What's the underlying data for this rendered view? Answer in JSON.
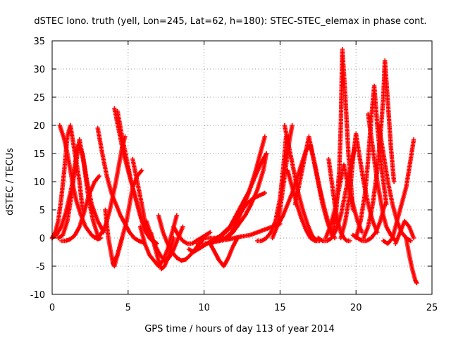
{
  "chart_data": {
    "type": "scatter",
    "title": "dSTEC Iono. truth (yell, Lon=245, Lat=62, h=180): STEC-STEC_elemax in phase cont.",
    "xlabel": "GPS time / hours of day 113 of year 2014",
    "ylabel": "dSTEC  / TECUs",
    "xlim": [
      0,
      25
    ],
    "ylim": [
      -10,
      35
    ],
    "xticks": [
      0,
      5,
      10,
      15,
      20,
      25
    ],
    "yticks": [
      -10,
      -5,
      0,
      5,
      10,
      15,
      20,
      25,
      30,
      35
    ],
    "xtick_labels": [
      "0",
      "5",
      "10",
      "15",
      "20",
      "25"
    ],
    "ytick_labels": [
      "-10",
      "-5",
      "0",
      "5",
      "10",
      "15",
      "20",
      "25",
      "30",
      "35"
    ],
    "grid": true,
    "marker": "+",
    "color": "#ff0000",
    "arcs": [
      {
        "x": [
          0.0,
          0.3,
          0.6,
          0.9,
          1.2,
          1.5,
          1.8,
          2.1,
          2.4,
          2.7,
          3.0
        ],
        "y": [
          0,
          0.6,
          2,
          4.5,
          8,
          12,
          17.5,
          13,
          7,
          3,
          0.5
        ]
      },
      {
        "x": [
          0.0,
          0.2,
          0.4,
          0.6,
          0.8,
          1.0,
          1.2,
          1.5,
          1.8,
          2.0
        ],
        "y": [
          0,
          1,
          3,
          7,
          12,
          18,
          20,
          15,
          10,
          5
        ]
      },
      {
        "x": [
          0.5,
          0.8,
          1.0,
          1.2,
          1.4,
          1.6,
          1.9,
          2.2,
          2.6,
          3.0,
          3.2
        ],
        "y": [
          20,
          17.5,
          15,
          12,
          9,
          6.5,
          4,
          2,
          0.5,
          -0.2,
          0
        ]
      },
      {
        "x": [
          0.4,
          0.7,
          1.0,
          1.3,
          1.5,
          1.7,
          2.0,
          2.3,
          2.6,
          3.0,
          3.4
        ],
        "y": [
          0,
          0.5,
          3,
          8,
          13,
          16.5,
          15,
          10,
          6,
          3,
          1
        ]
      },
      {
        "x": [
          0.6,
          0.9,
          1.2,
          1.5,
          1.8,
          2.1,
          2.4,
          2.8,
          3.1
        ],
        "y": [
          -0.5,
          -0.5,
          -0.2,
          0.5,
          2,
          4.5,
          7.5,
          10,
          11
        ]
      },
      {
        "x": [
          3.0,
          3.3,
          3.6,
          3.9,
          4.2,
          4.5,
          4.8,
          5.1,
          5.4,
          5.7,
          6.0
        ],
        "y": [
          19.5,
          15,
          11,
          8,
          6,
          4,
          2.5,
          1,
          0,
          -0.5,
          -0.8
        ]
      },
      {
        "x": [
          2.8,
          3.1,
          3.4,
          3.6,
          3.8,
          4.0,
          4.2,
          4.4,
          4.6,
          4.8
        ],
        "y": [
          0,
          0.3,
          1.5,
          3,
          5,
          7.5,
          10,
          13,
          16,
          18
        ]
      },
      {
        "x": [
          3.5,
          3.7,
          3.9,
          4.0,
          4.1,
          4.3,
          4.6
        ],
        "y": [
          5,
          0,
          -3,
          -4.5,
          -5,
          -3,
          0
        ]
      },
      {
        "x": [
          4.1,
          4.4,
          4.7,
          5.0,
          5.3,
          5.6,
          5.9,
          6.2,
          6.5,
          6.8
        ],
        "y": [
          23,
          19,
          15,
          12,
          9,
          6,
          3,
          1,
          0,
          -0.8
        ]
      },
      {
        "x": [
          4.3,
          4.6,
          4.9,
          5.2,
          5.5,
          5.8,
          6.1,
          6.4,
          6.8
        ],
        "y": [
          22.5,
          18,
          14,
          10,
          7,
          4,
          1.5,
          0,
          -1
        ]
      },
      {
        "x": [
          4.0,
          4.3,
          4.6,
          4.9,
          5.1,
          5.3,
          5.6,
          5.9
        ],
        "y": [
          -4.5,
          -3,
          0,
          3,
          6,
          9,
          11,
          12
        ]
      },
      {
        "x": [
          5.3,
          5.6,
          5.9,
          6.1,
          6.3,
          6.6,
          6.9
        ],
        "y": [
          14,
          10,
          6,
          3,
          1,
          -0.5,
          -1
        ]
      },
      {
        "x": [
          5.8,
          6.1,
          6.4,
          6.7,
          7.0,
          7.3,
          7.6,
          7.9,
          8.2
        ],
        "y": [
          2,
          -1,
          -3,
          -4,
          -5,
          -4,
          -2,
          1,
          4
        ]
      },
      {
        "x": [
          6.2,
          6.5,
          6.8,
          7.1,
          7.4,
          7.7,
          8.0,
          8.3,
          8.6
        ],
        "y": [
          3,
          0.5,
          -1.5,
          -3,
          -4,
          -3.5,
          -2,
          0,
          2
        ]
      },
      {
        "x": [
          6.5,
          6.8,
          7.0,
          7.2,
          7.4,
          7.7,
          8.0
        ],
        "y": [
          1,
          -2,
          -4,
          -5.5,
          -5,
          -3,
          0
        ]
      },
      {
        "x": [
          7.0,
          7.3,
          7.6,
          7.9,
          8.2,
          8.5,
          8.8,
          9.1,
          9.4,
          9.7,
          10.0
        ],
        "y": [
          4,
          1,
          -1,
          -2.5,
          -3.5,
          -4,
          -3.8,
          -3,
          -2,
          -1,
          0
        ]
      },
      {
        "x": [
          8.0,
          8.3,
          8.6,
          8.9,
          9.2,
          9.5,
          9.8,
          10.1,
          10.4
        ],
        "y": [
          2,
          0.5,
          -0.5,
          -1,
          -1,
          -0.5,
          0,
          0.5,
          1
        ]
      },
      {
        "x": [
          9.0,
          9.3,
          9.6,
          9.9,
          10.2,
          10.5,
          10.8,
          11.1,
          11.4
        ],
        "y": [
          -2,
          -2.5,
          -2,
          -1.5,
          -1,
          -0.5,
          0,
          0,
          0
        ]
      },
      {
        "x": [
          10.4,
          10.7,
          11.0,
          11.3,
          11.6,
          11.9,
          12.2
        ],
        "y": [
          -1,
          -2.5,
          -4,
          -5,
          -3.5,
          -1.5,
          0
        ]
      },
      {
        "x": [
          10.0,
          10.4,
          10.8,
          11.2,
          11.6,
          12.0,
          12.4,
          12.8,
          13.2,
          13.6,
          14.0
        ],
        "y": [
          0,
          0,
          0,
          0.5,
          1.5,
          3,
          4.5,
          6,
          7,
          7.5,
          8
        ]
      },
      {
        "x": [
          10.5,
          10.9,
          11.3,
          11.7,
          12.1,
          12.5,
          12.9,
          13.3,
          13.7,
          14.1
        ],
        "y": [
          -1,
          0,
          1,
          2,
          4,
          6,
          8,
          10.5,
          13,
          15
        ]
      },
      {
        "x": [
          11.5,
          11.9,
          12.3,
          12.7,
          13.1,
          13.5,
          13.9,
          14.1
        ],
        "y": [
          0,
          1,
          2.5,
          4,
          6,
          8.5,
          12,
          15
        ]
      },
      {
        "x": [
          11.0,
          11.4,
          11.8,
          12.2,
          12.6,
          13.0,
          13.4,
          13.7,
          14.0
        ],
        "y": [
          -0.5,
          0,
          1,
          3,
          5.5,
          8.5,
          12,
          15,
          18
        ]
      },
      {
        "x": [
          9.5,
          10.0,
          10.5,
          11.0,
          11.5,
          12.0,
          12.5,
          13.0,
          13.5,
          14.0,
          14.5,
          15.0
        ],
        "y": [
          -1,
          -1,
          -0.8,
          -0.5,
          -0.3,
          0,
          0.3,
          0.5,
          1,
          1.5,
          2,
          2.5
        ]
      },
      {
        "x": [
          13.5,
          13.8,
          14.1,
          14.4,
          14.7,
          15.0,
          15.2,
          15.4
        ],
        "y": [
          -0.5,
          -0.5,
          0,
          1,
          3,
          7,
          12,
          18
        ]
      },
      {
        "x": [
          14.5,
          14.8,
          15.0,
          15.2,
          15.4,
          15.6,
          15.8
        ],
        "y": [
          0,
          2,
          5,
          9,
          13,
          17,
          20
        ]
      },
      {
        "x": [
          15.3,
          15.6,
          15.9,
          16.2,
          16.5,
          16.8,
          17.1,
          17.4
        ],
        "y": [
          20,
          16,
          12,
          8,
          5,
          2.5,
          0.5,
          -0.5
        ]
      },
      {
        "x": [
          15.5,
          15.8,
          16.1,
          16.4,
          16.7,
          17.0,
          17.3,
          17.6
        ],
        "y": [
          12,
          9,
          6,
          3.5,
          1.5,
          0,
          -0.5,
          -0.5
        ]
      },
      {
        "x": [
          14.9,
          15.2,
          15.5,
          15.8,
          16.1,
          16.4,
          16.7,
          17.0,
          17.3,
          17.6,
          17.9,
          18.2,
          18.6
        ],
        "y": [
          2.5,
          4,
          6,
          8,
          10.5,
          13,
          15.5,
          16.5,
          13,
          9,
          5.5,
          2.5,
          0
        ]
      },
      {
        "x": [
          16.0,
          16.3,
          16.6,
          16.9,
          17.2,
          17.5,
          17.8,
          18.1,
          18.4
        ],
        "y": [
          6,
          10,
          14,
          18,
          14,
          10,
          6,
          3,
          0.5
        ]
      },
      {
        "x": [
          17.5,
          17.8,
          18.1,
          18.4,
          18.7,
          19.0,
          19.3,
          19.6,
          19.9
        ],
        "y": [
          0,
          -0.5,
          -0.5,
          0,
          1.5,
          4,
          8,
          12,
          16
        ]
      },
      {
        "x": [
          18.0,
          18.3,
          18.6,
          18.9,
          19.2,
          19.5,
          19.8,
          20.1,
          20.4
        ],
        "y": [
          0,
          2,
          5,
          9,
          13,
          9,
          6,
          3,
          1
        ]
      },
      {
        "x": [
          18.2,
          18.4,
          18.6,
          18.8,
          19.0,
          19.2,
          19.4,
          19.6
        ],
        "y": [
          14,
          10,
          6,
          3,
          1,
          0,
          -0.5,
          -0.5
        ]
      },
      {
        "x": [
          18.5,
          18.7,
          18.9,
          19.0,
          19.1,
          19.3,
          19.5,
          19.8
        ],
        "y": [
          1,
          5,
          12,
          20,
          33.5,
          25,
          15,
          5
        ]
      },
      {
        "x": [
          19.0,
          19.3,
          19.6,
          19.8,
          20.0,
          20.2,
          20.5,
          20.8,
          21.1,
          21.4
        ],
        "y": [
          0,
          3,
          8,
          14,
          18.5,
          15,
          10,
          6,
          3,
          1
        ]
      },
      {
        "x": [
          19.8,
          20.1,
          20.4,
          20.7,
          21.0,
          21.3,
          21.6,
          21.9
        ],
        "y": [
          0.5,
          0,
          -0.5,
          -0.5,
          0,
          1,
          3,
          6
        ]
      },
      {
        "x": [
          20.0,
          20.3,
          20.6,
          20.8,
          21.0,
          21.2,
          21.4,
          21.7,
          22.0
        ],
        "y": [
          0,
          3,
          8,
          14,
          21,
          27,
          20,
          12,
          6
        ]
      },
      {
        "x": [
          20.5,
          20.8,
          21.1,
          21.4,
          21.6,
          21.8,
          21.9,
          22.1,
          22.3,
          22.5
        ],
        "y": [
          0,
          2,
          6,
          12,
          18,
          25,
          31.5,
          24,
          16,
          10
        ]
      },
      {
        "x": [
          20.8,
          21.0,
          21.2,
          21.4,
          21.6,
          21.8,
          22.0,
          22.3,
          22.6
        ],
        "y": [
          22,
          18,
          14,
          10,
          7,
          4,
          2,
          0.5,
          -0.5
        ]
      },
      {
        "x": [
          21.5,
          21.8,
          22.1,
          22.4,
          22.7,
          23.0,
          23.3,
          23.6
        ],
        "y": [
          20,
          15,
          10,
          6,
          3,
          1,
          0,
          -0.5
        ]
      },
      {
        "x": [
          21.8,
          22.1,
          22.4,
          22.7,
          23.0,
          23.3,
          23.6,
          23.8
        ],
        "y": [
          -0.5,
          -1,
          0,
          3,
          6,
          9,
          14,
          17.5
        ]
      },
      {
        "x": [
          22.6,
          22.9,
          23.2,
          23.5,
          23.8
        ],
        "y": [
          -1,
          1,
          3,
          2,
          0
        ]
      },
      {
        "x": [
          23.3,
          23.5,
          23.7,
          23.9,
          24.0
        ],
        "y": [
          0,
          -3,
          -5.5,
          -7.5,
          -8
        ]
      }
    ]
  }
}
